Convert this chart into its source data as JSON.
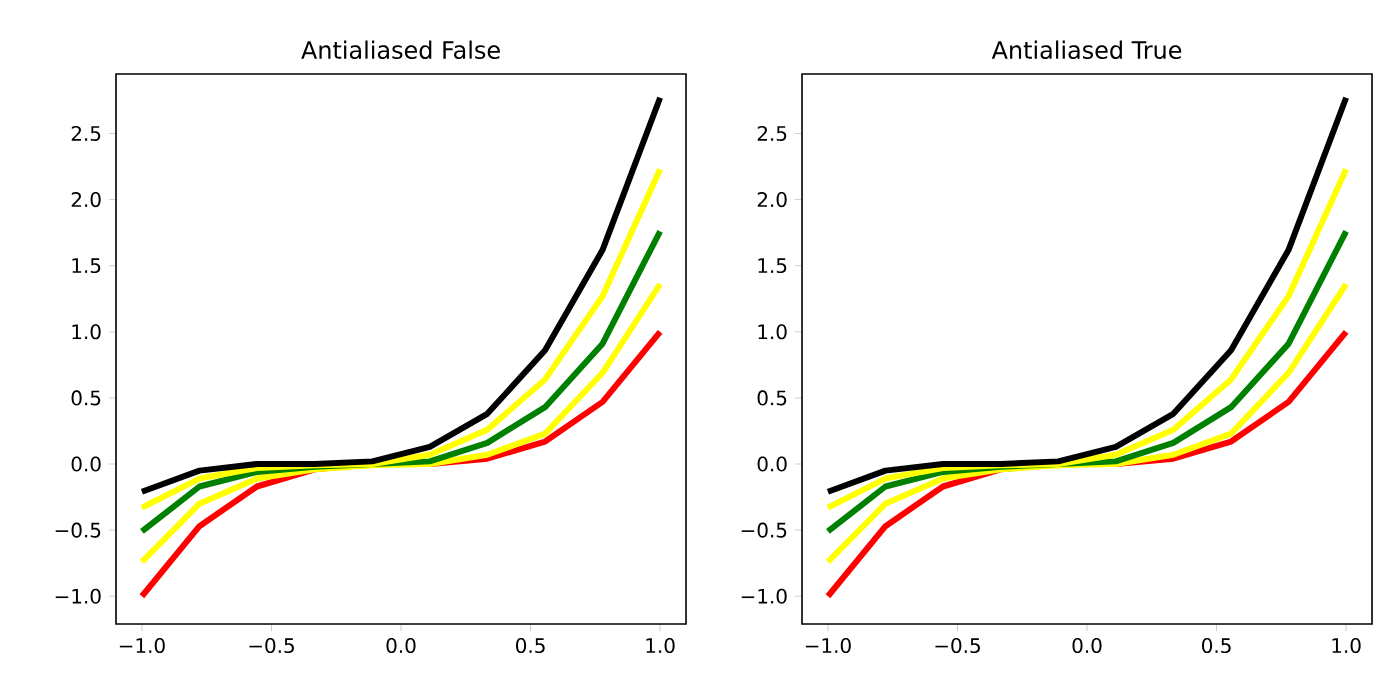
{
  "chart_data": [
    {
      "type": "line",
      "title": "Antialiased False",
      "x": [
        -1,
        -0.778,
        -0.556,
        -0.333,
        -0.111,
        0.111,
        0.333,
        0.556,
        0.778,
        1
      ],
      "series": [
        {
          "color": "#ff0000",
          "values": [
            -1.0,
            -0.47,
            -0.17,
            -0.04,
            0.0,
            0.0,
            0.04,
            0.17,
            0.47,
            1.0
          ]
        },
        {
          "color": "#ffff00",
          "values": [
            -0.74,
            -0.3,
            -0.11,
            -0.04,
            -0.01,
            0.0,
            0.07,
            0.23,
            0.69,
            1.36
          ]
        },
        {
          "color": "#008000",
          "values": [
            -0.51,
            -0.17,
            -0.06,
            -0.02,
            0.0,
            0.02,
            0.16,
            0.43,
            0.91,
            1.76
          ]
        },
        {
          "color": "#ffff00",
          "values": [
            -0.33,
            -0.11,
            -0.03,
            -0.01,
            0.0,
            0.07,
            0.26,
            0.64,
            1.27,
            2.23
          ]
        },
        {
          "color": "#000000",
          "values": [
            -0.21,
            -0.05,
            0.0,
            0.0,
            0.02,
            0.13,
            0.38,
            0.86,
            1.62,
            2.77
          ]
        }
      ],
      "xlim": [
        -1.1,
        1.1
      ],
      "ylim": [
        -1.21,
        2.95
      ],
      "xticks": [
        {
          "value": -1,
          "label": "−1.0"
        },
        {
          "value": -0.5,
          "label": "−0.5"
        },
        {
          "value": 0,
          "label": "0.0"
        },
        {
          "value": 0.5,
          "label": "0.5"
        },
        {
          "value": 1,
          "label": "1.0"
        }
      ],
      "yticks": [
        {
          "value": -1,
          "label": "−1.0"
        },
        {
          "value": -0.5,
          "label": "−0.5"
        },
        {
          "value": 0,
          "label": "0.0"
        },
        {
          "value": 0.5,
          "label": "0.5"
        },
        {
          "value": 1,
          "label": "1.0"
        },
        {
          "value": 1.5,
          "label": "1.5"
        },
        {
          "value": 2,
          "label": "2.0"
        },
        {
          "value": 2.5,
          "label": "2.5"
        }
      ]
    },
    {
      "type": "line",
      "title": "Antialiased True",
      "x": [
        -1,
        -0.778,
        -0.556,
        -0.333,
        -0.111,
        0.111,
        0.333,
        0.556,
        0.778,
        1
      ],
      "series": [
        {
          "color": "#ff0000",
          "values": [
            -1.0,
            -0.47,
            -0.17,
            -0.04,
            0.0,
            0.0,
            0.04,
            0.17,
            0.47,
            1.0
          ]
        },
        {
          "color": "#ffff00",
          "values": [
            -0.74,
            -0.3,
            -0.11,
            -0.04,
            -0.01,
            0.0,
            0.07,
            0.23,
            0.69,
            1.36
          ]
        },
        {
          "color": "#008000",
          "values": [
            -0.51,
            -0.17,
            -0.06,
            -0.02,
            0.0,
            0.02,
            0.16,
            0.43,
            0.91,
            1.76
          ]
        },
        {
          "color": "#ffff00",
          "values": [
            -0.33,
            -0.11,
            -0.03,
            -0.01,
            0.0,
            0.07,
            0.26,
            0.64,
            1.27,
            2.23
          ]
        },
        {
          "color": "#000000",
          "values": [
            -0.21,
            -0.05,
            0.0,
            0.0,
            0.02,
            0.13,
            0.38,
            0.86,
            1.62,
            2.77
          ]
        }
      ],
      "xlim": [
        -1.1,
        1.1
      ],
      "ylim": [
        -1.21,
        2.95
      ],
      "xticks": [
        {
          "value": -1,
          "label": "−1.0"
        },
        {
          "value": -0.5,
          "label": "−0.5"
        },
        {
          "value": 0,
          "label": "0.0"
        },
        {
          "value": 0.5,
          "label": "0.5"
        },
        {
          "value": 1,
          "label": "1.0"
        }
      ],
      "yticks": [
        {
          "value": -1,
          "label": "−1.0"
        },
        {
          "value": -0.5,
          "label": "−0.5"
        },
        {
          "value": 0,
          "label": "0.0"
        },
        {
          "value": 0.5,
          "label": "0.5"
        },
        {
          "value": 1,
          "label": "1.0"
        },
        {
          "value": 1.5,
          "label": "1.5"
        },
        {
          "value": 2,
          "label": "2.0"
        },
        {
          "value": 2.5,
          "label": "2.5"
        }
      ]
    }
  ]
}
